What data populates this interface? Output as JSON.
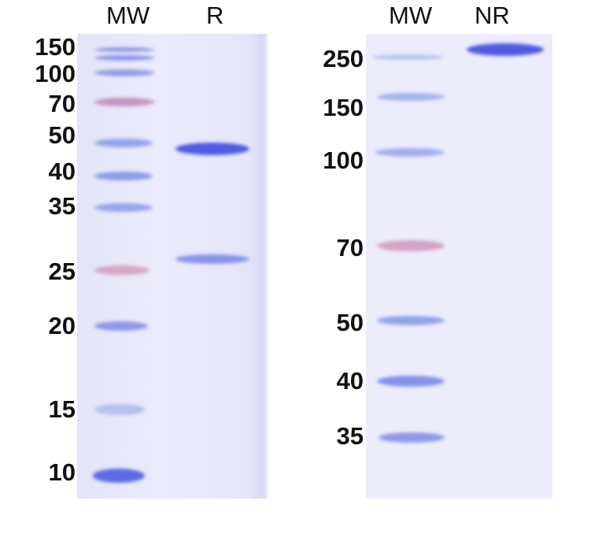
{
  "left_gel": {
    "lanes": [
      "MW",
      "R"
    ],
    "markers": [
      "150",
      "100",
      "70",
      "50",
      "40",
      "35",
      "25",
      "20",
      "15",
      "10"
    ]
  },
  "right_gel": {
    "lanes": [
      "MW",
      "NR"
    ],
    "markers": [
      "250",
      "150",
      "100",
      "70",
      "50",
      "40",
      "35"
    ]
  },
  "colors": {
    "gel": "#e9e9fb",
    "band": "#5a66e0",
    "marker_pink": "#c07aa8"
  }
}
